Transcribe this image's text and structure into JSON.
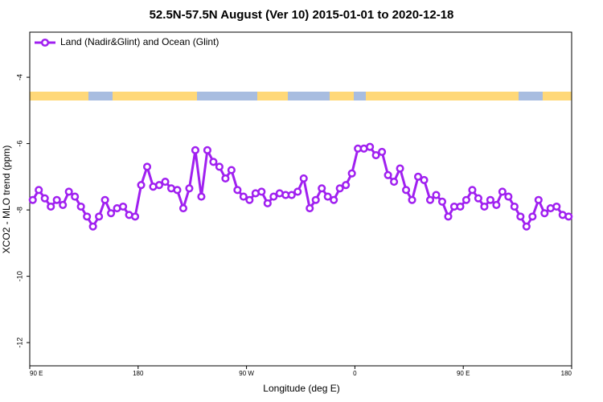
{
  "chart_data": {
    "type": "line",
    "title": "52.5N-57.5N August (Ver 10)   2015-01-01 to 2020-12-18",
    "x_label": "Longitude (deg E)",
    "y_label": "XCO2 - MLO trend (ppm)",
    "x": [
      92.5,
      97.5,
      102.5,
      107.5,
      112.5,
      117.5,
      122.5,
      127.5,
      132.5,
      137.5,
      142.5,
      147.5,
      152.5,
      157.5,
      162.5,
      167.5,
      172.5,
      177.5,
      182.5,
      187.5,
      192.5,
      197.5,
      202.5,
      207.5,
      212.5,
      217.5,
      222.5,
      227.5,
      232.5,
      237.5,
      242.5,
      247.5,
      252.5,
      257.5,
      262.5,
      267.5,
      272.5,
      277.5,
      282.5,
      287.5,
      292.5,
      297.5,
      302.5,
      307.5,
      312.5,
      317.5,
      322.5,
      327.5,
      332.5,
      337.5,
      342.5,
      347.5,
      352.5,
      357.5,
      362.5,
      367.5,
      372.5,
      377.5,
      382.5,
      387.5,
      392.5,
      397.5,
      402.5,
      407.5,
      412.5,
      417.5,
      422.5,
      427.5,
      432.5,
      437.5,
      442.5,
      447.5,
      452.5,
      457.5,
      462.5,
      467.5,
      472.5,
      477.5,
      482.5,
      487.5,
      492.5,
      497.5,
      502.5,
      507.5,
      512.5,
      517.5,
      522.5,
      527.5,
      532.5,
      537.5
    ],
    "series": [
      {
        "name": "Land (Nadir&Glint) and Ocean (Glint)",
        "color": "#a020f0",
        "values": [
          -7.7,
          -7.4,
          -7.65,
          -7.9,
          -7.7,
          -7.85,
          -7.45,
          -7.6,
          -7.9,
          -8.2,
          -8.5,
          -8.2,
          -7.7,
          -8.1,
          -7.95,
          -7.9,
          -8.15,
          -8.2,
          -7.25,
          -6.7,
          -7.3,
          -7.25,
          -7.15,
          -7.35,
          -7.4,
          -7.95,
          -7.35,
          -6.2,
          -7.6,
          -6.2,
          -6.55,
          -6.7,
          -7.05,
          -6.8,
          -7.4,
          -7.6,
          -7.7,
          -7.5,
          -7.45,
          -7.8,
          -7.6,
          -7.5,
          -7.55,
          -7.55,
          -7.45,
          -7.05,
          -7.95,
          -7.7,
          -7.35,
          -7.6,
          -7.7,
          -7.35,
          -7.25,
          -6.9,
          -6.15,
          -6.15,
          -6.1,
          -6.35,
          -6.25,
          -6.95,
          -7.15,
          -6.75,
          -7.4,
          -7.7,
          -7.0,
          -7.1,
          -7.7,
          -7.55,
          -7.75,
          -8.2,
          -7.9,
          -7.9,
          -7.7,
          -7.4,
          -7.65,
          -7.9,
          -7.7,
          -7.85,
          -7.45,
          -7.6,
          -7.9,
          -8.2,
          -8.5,
          -8.2,
          -7.7,
          -8.1,
          -7.95,
          -7.9,
          -8.15,
          -8.2
        ]
      }
    ],
    "xlim": [
      90,
      540
    ],
    "xticks": [
      {
        "value": 90,
        "label": "90 E"
      },
      180,
      {
        "value": 270,
        "label": "90 W"
      },
      {
        "value": 360,
        "label": "0"
      },
      {
        "value": 450,
        "label": "90 E"
      },
      {
        "value": 540,
        "label": "180"
      }
    ],
    "ylim": [
      -12.7,
      -2.64
    ],
    "yticks": [
      -4,
      -6,
      -8,
      -10,
      -12
    ],
    "legend": "top-left"
  }
}
